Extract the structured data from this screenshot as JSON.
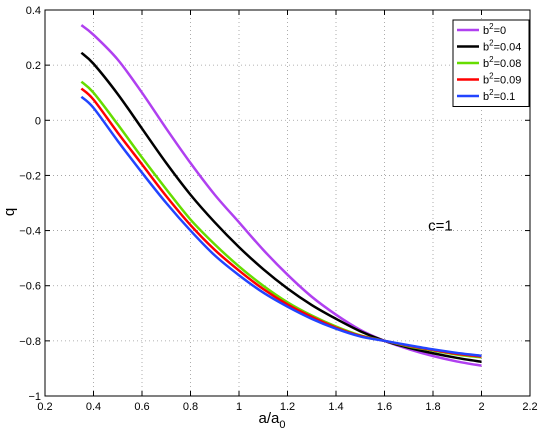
{
  "chart_data": {
    "type": "line",
    "title": "",
    "xlabel": "a/a",
    "xlabel_sub": "0",
    "ylabel": "q",
    "xlim": [
      0.2,
      2.2
    ],
    "ylim": [
      -1,
      0.4
    ],
    "xticks": [
      0.2,
      0.4,
      0.6,
      0.8,
      1,
      1.2,
      1.4,
      1.6,
      1.8,
      2,
      2.2
    ],
    "yticks": [
      -1,
      -0.8,
      -0.6,
      -0.4,
      -0.2,
      0,
      0.2,
      0.4
    ],
    "xtick_labels": [
      "0.2",
      "0.4",
      "0.6",
      "0.8",
      "1",
      "1.2",
      "1.4",
      "1.6",
      "1.8",
      "2",
      "2.2"
    ],
    "ytick_labels": [
      "−1",
      "−0.8",
      "−0.6",
      "−0.4",
      "−0.2",
      "0",
      "0.2",
      "0.4"
    ],
    "grid": true,
    "legend_position": "top-right",
    "annotation": {
      "text": "c=1",
      "x": 1.78,
      "y": -0.4
    },
    "series": [
      {
        "name": "b",
        "name_sup": "2",
        "name_tail": "=0",
        "color": "#b040f0",
        "x": [
          0.35,
          0.4,
          0.5,
          0.6,
          0.7,
          0.8,
          0.9,
          1.0,
          1.1,
          1.2,
          1.3,
          1.4,
          1.5,
          1.6,
          1.7,
          1.8,
          1.9,
          2.0
        ],
        "y": [
          0.345,
          0.31,
          0.22,
          0.1,
          -0.03,
          -0.155,
          -0.27,
          -0.37,
          -0.47,
          -0.56,
          -0.64,
          -0.705,
          -0.76,
          -0.8,
          -0.83,
          -0.855,
          -0.875,
          -0.89
        ]
      },
      {
        "name": "b",
        "name_sup": "2",
        "name_tail": "=0.04",
        "color": "#000000",
        "x": [
          0.35,
          0.4,
          0.5,
          0.6,
          0.7,
          0.8,
          0.9,
          1.0,
          1.1,
          1.2,
          1.3,
          1.4,
          1.5,
          1.6,
          1.7,
          1.8,
          1.9,
          2.0
        ],
        "y": [
          0.245,
          0.205,
          0.095,
          -0.03,
          -0.155,
          -0.27,
          -0.37,
          -0.46,
          -0.54,
          -0.61,
          -0.67,
          -0.72,
          -0.765,
          -0.8,
          -0.825,
          -0.845,
          -0.862,
          -0.876
        ]
      },
      {
        "name": "b",
        "name_sup": "2",
        "name_tail": "=0.08",
        "color": "#66dd00",
        "x": [
          0.35,
          0.4,
          0.5,
          0.6,
          0.7,
          0.8,
          0.9,
          1.0,
          1.1,
          1.2,
          1.3,
          1.4,
          1.5,
          1.6,
          1.7,
          1.8,
          1.9,
          2.0
        ],
        "y": [
          0.14,
          0.1,
          -0.015,
          -0.135,
          -0.25,
          -0.36,
          -0.45,
          -0.53,
          -0.6,
          -0.66,
          -0.708,
          -0.748,
          -0.78,
          -0.8,
          -0.82,
          -0.835,
          -0.85,
          -0.86
        ]
      },
      {
        "name": "b",
        "name_sup": "2",
        "name_tail": "=0.09",
        "color": "#ff0000",
        "x": [
          0.35,
          0.4,
          0.5,
          0.6,
          0.7,
          0.8,
          0.9,
          1.0,
          1.1,
          1.2,
          1.3,
          1.4,
          1.5,
          1.6,
          1.7,
          1.8,
          1.9,
          2.0
        ],
        "y": [
          0.115,
          0.075,
          -0.045,
          -0.16,
          -0.275,
          -0.38,
          -0.47,
          -0.545,
          -0.612,
          -0.668,
          -0.713,
          -0.752,
          -0.782,
          -0.8,
          -0.818,
          -0.833,
          -0.847,
          -0.857
        ]
      },
      {
        "name": "b",
        "name_sup": "2",
        "name_tail": "=0.1",
        "color": "#2244ff",
        "x": [
          0.35,
          0.4,
          0.5,
          0.6,
          0.7,
          0.8,
          0.9,
          1.0,
          1.1,
          1.2,
          1.3,
          1.4,
          1.5,
          1.6,
          1.7,
          1.8,
          1.9,
          2.0
        ],
        "y": [
          0.085,
          0.045,
          -0.075,
          -0.19,
          -0.3,
          -0.4,
          -0.49,
          -0.562,
          -0.625,
          -0.676,
          -0.72,
          -0.756,
          -0.784,
          -0.8,
          -0.816,
          -0.831,
          -0.844,
          -0.854
        ]
      }
    ]
  }
}
